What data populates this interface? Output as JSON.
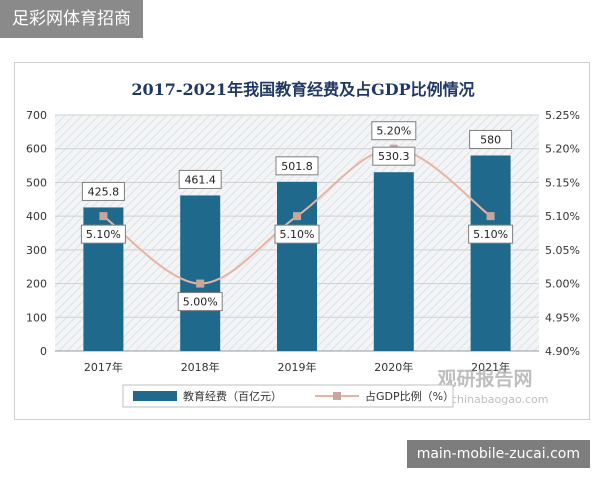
{
  "top_banner": {
    "text": "足彩网体育招商"
  },
  "bottom_banner": {
    "text": "main-mobile-zucai.com"
  },
  "watermark": {
    "brand": "观研报告网",
    "url": "www.chinabaogao.com"
  },
  "colors": {
    "bar": "#1f6a8c",
    "line": "#e8b4a0",
    "marker": "#c9a69c",
    "title": "#1f3864",
    "grid": "#d0d0d0"
  },
  "chart_data": {
    "type": "bar",
    "title": "2017-2021年我国教育经费及占GDP比例情况",
    "categories": [
      "2017年",
      "2018年",
      "2019年",
      "2020年",
      "2021年"
    ],
    "series": [
      {
        "name": "教育经费（百亿元）",
        "type": "bar",
        "axis": "left",
        "values": [
          425.8,
          461.4,
          501.8,
          530.3,
          580
        ],
        "value_labels": [
          "425.8",
          "461.4",
          "501.8",
          "530.3",
          "580"
        ]
      },
      {
        "name": "占GDP比例（%）",
        "type": "line",
        "axis": "right",
        "values": [
          5.1,
          5.0,
          5.1,
          5.2,
          5.1
        ],
        "value_labels": [
          "5.10%",
          "5.00%",
          "5.10%",
          "5.20%",
          "5.10%"
        ]
      }
    ],
    "y_left": {
      "ylim": [
        0,
        700
      ],
      "ticks": [
        "0",
        "100",
        "200",
        "300",
        "400",
        "500",
        "600",
        "700"
      ]
    },
    "y_right": {
      "ylim": [
        4.9,
        5.25
      ],
      "ticks": [
        "4.90%",
        "4.95%",
        "5.00%",
        "5.05%",
        "5.10%",
        "5.15%",
        "5.20%",
        "5.25%"
      ]
    },
    "grid": true,
    "legend_position": "bottom"
  }
}
